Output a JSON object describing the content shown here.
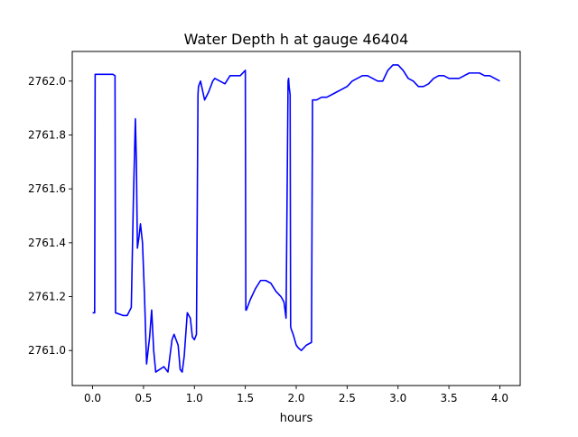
{
  "chart_data": {
    "type": "line",
    "title": "Water Depth h at gauge 46404",
    "xlabel": "hours",
    "ylabel": "",
    "xlim": [
      -0.2,
      4.2
    ],
    "ylim": [
      2760.87,
      2762.11
    ],
    "xticks": [
      0.0,
      0.5,
      1.0,
      1.5,
      2.0,
      2.5,
      3.0,
      3.5,
      4.0
    ],
    "xtick_labels": [
      "0.0",
      "0.5",
      "1.0",
      "1.5",
      "2.0",
      "2.5",
      "3.0",
      "3.5",
      "4.0"
    ],
    "yticks": [
      2761.0,
      2761.2,
      2761.4,
      2761.6,
      2761.8,
      2762.0
    ],
    "ytick_labels": [
      "2761.0",
      "2761.2",
      "2761.4",
      "2761.6",
      "2761.8",
      "2762.0"
    ],
    "grid": false,
    "legend": "none",
    "series": [
      {
        "name": "",
        "color": "#0000ff",
        "x": [
          0.0,
          0.02,
          0.025,
          0.2,
          0.22,
          0.225,
          0.3,
          0.34,
          0.38,
          0.4,
          0.42,
          0.43,
          0.44,
          0.455,
          0.47,
          0.49,
          0.51,
          0.53,
          0.56,
          0.58,
          0.6,
          0.62,
          0.66,
          0.7,
          0.74,
          0.78,
          0.8,
          0.84,
          0.86,
          0.88,
          0.9,
          0.93,
          0.96,
          0.98,
          1.0,
          1.02,
          1.035,
          1.04,
          1.06,
          1.1,
          1.14,
          1.18,
          1.2,
          1.25,
          1.3,
          1.35,
          1.4,
          1.45,
          1.5,
          1.505,
          1.51,
          1.55,
          1.6,
          1.65,
          1.7,
          1.75,
          1.8,
          1.85,
          1.88,
          1.9,
          1.92,
          1.925,
          1.93,
          1.94,
          1.945,
          1.95,
          1.97,
          2.0,
          2.02,
          2.05,
          2.1,
          2.15,
          2.16,
          2.2,
          2.25,
          2.3,
          2.35,
          2.4,
          2.45,
          2.5,
          2.55,
          2.6,
          2.65,
          2.7,
          2.75,
          2.8,
          2.85,
          2.9,
          2.95,
          3.0,
          3.05,
          3.1,
          3.15,
          3.2,
          3.25,
          3.3,
          3.35,
          3.4,
          3.45,
          3.5,
          3.55,
          3.6,
          3.65,
          3.7,
          3.75,
          3.8,
          3.85,
          3.9,
          3.95,
          4.0
        ],
        "y": [
          2761.14,
          2761.14,
          2762.025,
          2762.025,
          2762.02,
          2761.14,
          2761.13,
          2761.13,
          2761.16,
          2761.55,
          2761.86,
          2761.7,
          2761.38,
          2761.42,
          2761.47,
          2761.4,
          2761.2,
          2760.95,
          2761.05,
          2761.15,
          2761.0,
          2760.92,
          2760.93,
          2760.94,
          2760.92,
          2761.04,
          2761.06,
          2761.02,
          2760.93,
          2760.92,
          2760.98,
          2761.14,
          2761.12,
          2761.05,
          2761.04,
          2761.06,
          2761.95,
          2761.98,
          2762.0,
          2761.93,
          2761.96,
          2762.0,
          2762.01,
          2762.0,
          2761.99,
          2762.02,
          2762.02,
          2762.02,
          2762.04,
          2761.15,
          2761.15,
          2761.19,
          2761.23,
          2761.26,
          2761.26,
          2761.25,
          2761.22,
          2761.2,
          2761.18,
          2761.12,
          2762.0,
          2762.01,
          2761.98,
          2761.95,
          2761.09,
          2761.08,
          2761.06,
          2761.02,
          2761.01,
          2761.0,
          2761.02,
          2761.03,
          2761.93,
          2761.93,
          2761.94,
          2761.94,
          2761.95,
          2761.96,
          2761.97,
          2761.98,
          2762.0,
          2762.01,
          2762.02,
          2762.02,
          2762.01,
          2762.0,
          2762.0,
          2762.04,
          2762.06,
          2762.06,
          2762.04,
          2762.01,
          2762.0,
          2761.98,
          2761.98,
          2761.99,
          2762.01,
          2762.02,
          2762.02,
          2762.01,
          2762.01,
          2762.01,
          2762.02,
          2762.03,
          2762.03,
          2762.03,
          2762.02,
          2762.02,
          2762.01,
          2762.0
        ]
      }
    ]
  }
}
